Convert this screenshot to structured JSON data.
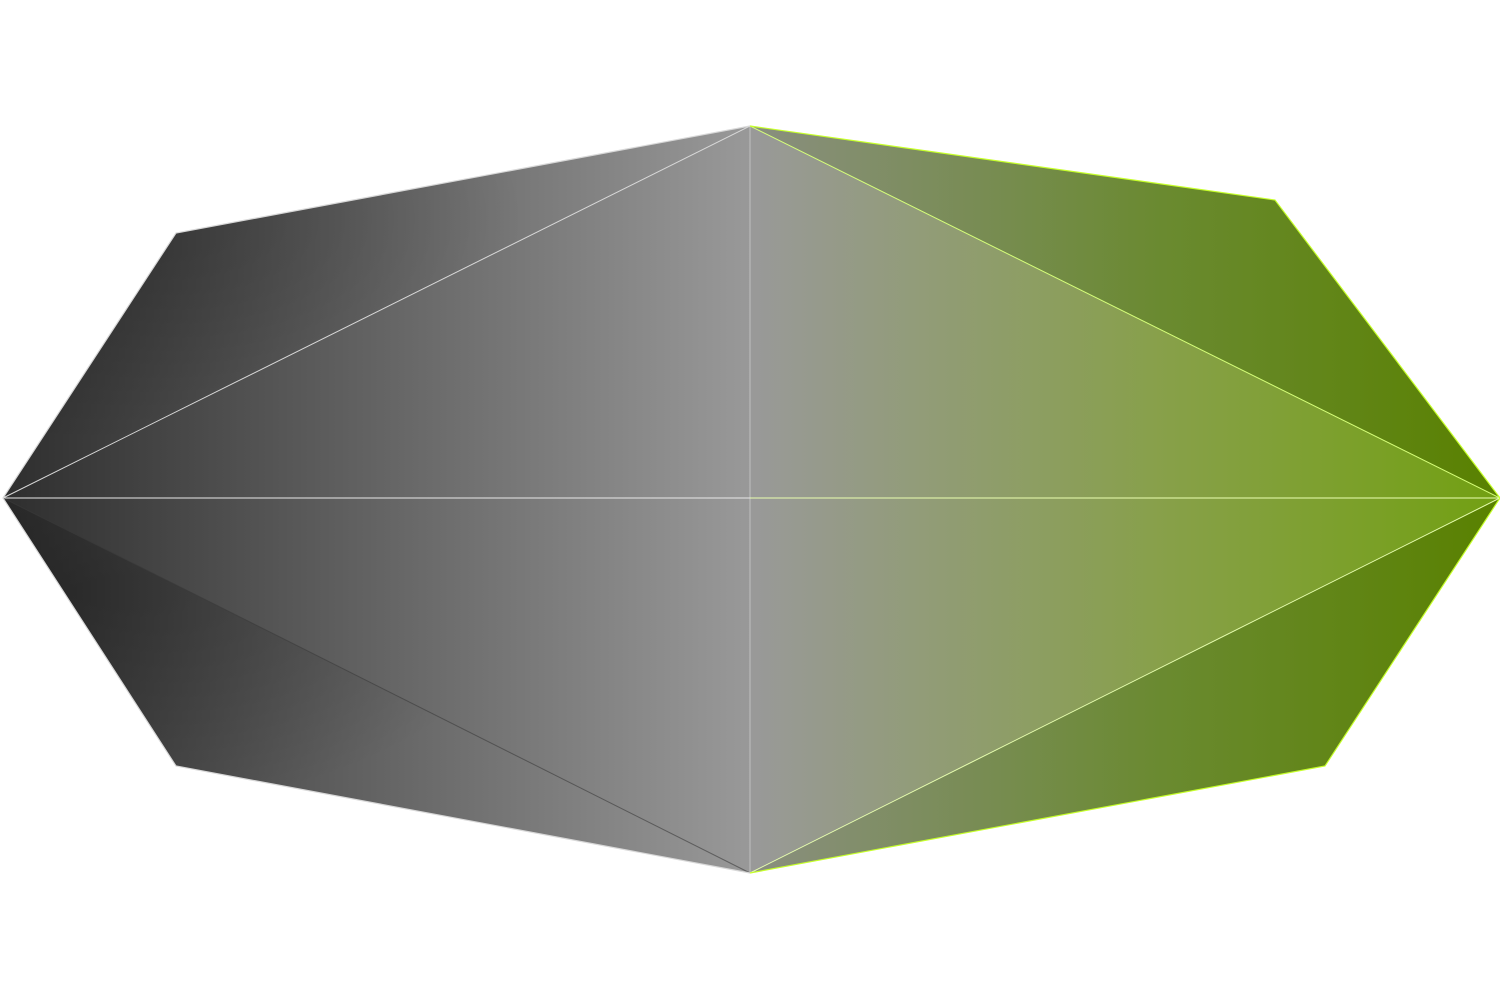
{
  "colors": {
    "background": "#ffffff",
    "left_dark": "#2e2e2e",
    "mid_gray": "#999999",
    "right_green_light": "#7aa21a",
    "right_green_dark": "#5a8000",
    "edge_light": "#d8d8d8",
    "edge_green": "#c6ff2a",
    "edge_dark": "#3a3a3a"
  },
  "shape": {
    "kind": "faceted-octagon-gem",
    "description_icon": "gem-icon"
  }
}
